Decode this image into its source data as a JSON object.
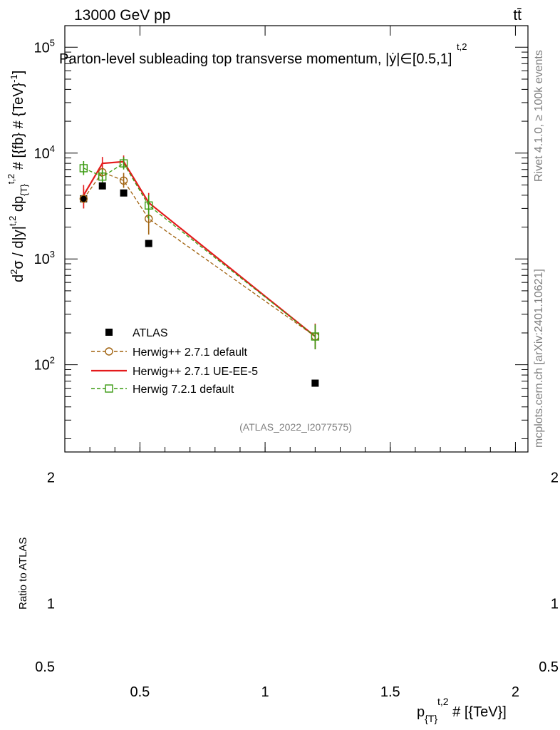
{
  "header": {
    "left": "13000 GeV pp",
    "right": "tt̄"
  },
  "side_labels": {
    "rivet": "Rivet 4.1.0, ≥ 100k events",
    "mcplots": "mcplots.cern.ch [arXiv:2401.10621]"
  },
  "chart_data": [
    {
      "type": "line",
      "title": "Parton-level subleading top transverse momentum, |ẏ|∈[0.5,1]",
      "title_sup": "t,2",
      "ylabel": "d²σ / d|y^{t,2}| dp_{T}^{t,2} # [{fb} # {TeV}⁻¹]",
      "ylabel_parts": {
        "a": "d",
        "a_sup": "2",
        "b": "σ / d|y|",
        "b_sup": "t,2",
        "c": " dp",
        "c_sub": "{T}",
        "c_sup": "t,2",
        "d": " # [{fb} # {TeV}",
        "d_sup": "-1",
        "e": "]"
      },
      "xlabel_parts": {
        "a": "p",
        "a_sub": "{T}",
        "a_sup": "t,2",
        "b": " # [{TeV}]"
      },
      "yscale": "log",
      "ylim": [
        15,
        160000
      ],
      "y_ticks": [
        {
          "value": 100,
          "base": "10",
          "exp": "2"
        },
        {
          "value": 1000,
          "base": "10",
          "exp": "3"
        },
        {
          "value": 10000,
          "base": "10",
          "exp": "4"
        },
        {
          "value": 100000,
          "base": "10",
          "exp": "5"
        }
      ],
      "xlim": [
        0.2,
        2.05
      ],
      "x_ticks": [
        {
          "value": 0.5,
          "label": "0.5"
        },
        {
          "value": 1,
          "label": "1"
        },
        {
          "value": 1.5,
          "label": "1.5"
        },
        {
          "value": 2,
          "label": "2"
        }
      ],
      "watermark": "(ATLAS_2022_I2077575)",
      "legend_position": "lower-left",
      "series": [
        {
          "name": "ATLAS",
          "style": "marker-square-filled",
          "color": "#000000",
          "x": [
            0.275,
            0.35,
            0.435,
            0.535,
            1.2
          ],
          "y": [
            3700,
            4900,
            4200,
            1400,
            67
          ]
        },
        {
          "name": "Herwig++ 2.7.1 default",
          "style": "dashed-circle",
          "color": "#a0620f",
          "x": [
            0.275,
            0.35,
            0.435,
            0.535,
            1.2
          ],
          "y": [
            3700,
            6600,
            5500,
            2400,
            185
          ],
          "err_low": [
            3000,
            5600,
            4700,
            1700,
            140
          ],
          "err_high": [
            4600,
            7600,
            6500,
            3200,
            240
          ]
        },
        {
          "name": "Herwig++ 2.7.1 UE-EE-5",
          "style": "solid",
          "color": "#e41a1c",
          "x": [
            0.275,
            0.35,
            0.435,
            0.535,
            1.2
          ],
          "y": [
            4000,
            8000,
            8300,
            3400,
            185
          ],
          "err_low": [
            3000,
            7000,
            7300,
            2600,
            140
          ],
          "err_high": [
            5000,
            9200,
            9500,
            4200,
            245
          ]
        },
        {
          "name": "Herwig 7.2.1 default",
          "style": "dashed-square",
          "color": "#3a9a10",
          "x": [
            0.275,
            0.35,
            0.435,
            0.535,
            1.2
          ],
          "y": [
            7200,
            6000,
            8000,
            3200,
            185
          ],
          "err_low": [
            6200,
            5000,
            7000,
            2400,
            140
          ],
          "err_high": [
            8400,
            7000,
            9200,
            4000,
            240
          ]
        }
      ]
    },
    {
      "type": "line",
      "ylabel": "Ratio to ATLAS",
      "ylim": [
        0.45,
        2.2
      ],
      "y_ticks": [
        {
          "value": 0.5,
          "label": "0.5"
        },
        {
          "value": 1,
          "label": "1"
        },
        {
          "value": 2,
          "label": "2"
        }
      ],
      "xlim": [
        0.2,
        2.05
      ],
      "series": []
    }
  ]
}
